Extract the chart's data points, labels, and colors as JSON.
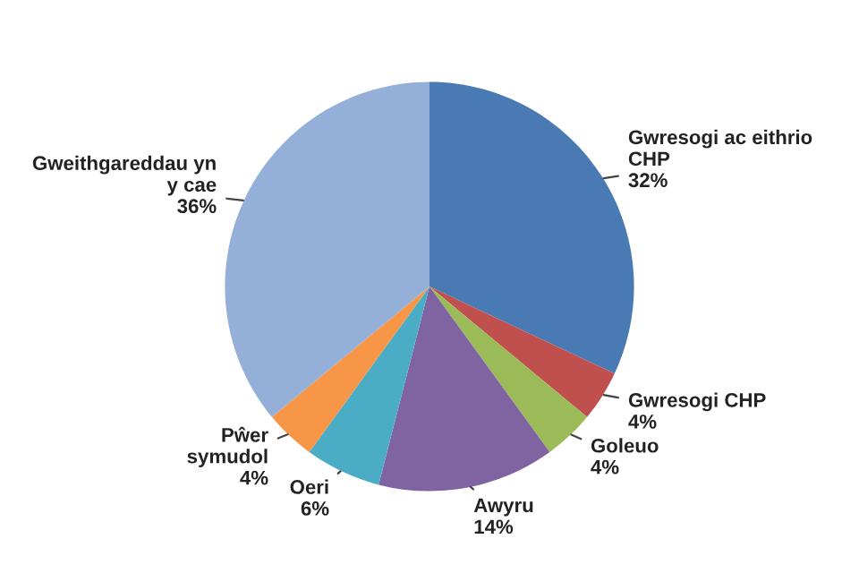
{
  "chart_data": {
    "type": "pie",
    "categories": [
      "Gwresogi ac eithrio\nCHP",
      "Gwresogi CHP",
      "Goleuo",
      "Awyru",
      "Oeri",
      "Pŵer\nsymudol",
      "Gweithgareddau yn\ny cae"
    ],
    "values": [
      32,
      4,
      4,
      14,
      6,
      4,
      36
    ],
    "colors": [
      "#4a7ab4",
      "#c0504d",
      "#9bbb59",
      "#8064a2",
      "#4bacc6",
      "#f79646",
      "#95b0d8"
    ],
    "value_labels": [
      "32%",
      "4%",
      "4%",
      "14%",
      "6%",
      "4%",
      "36%"
    ],
    "legend": false
  }
}
